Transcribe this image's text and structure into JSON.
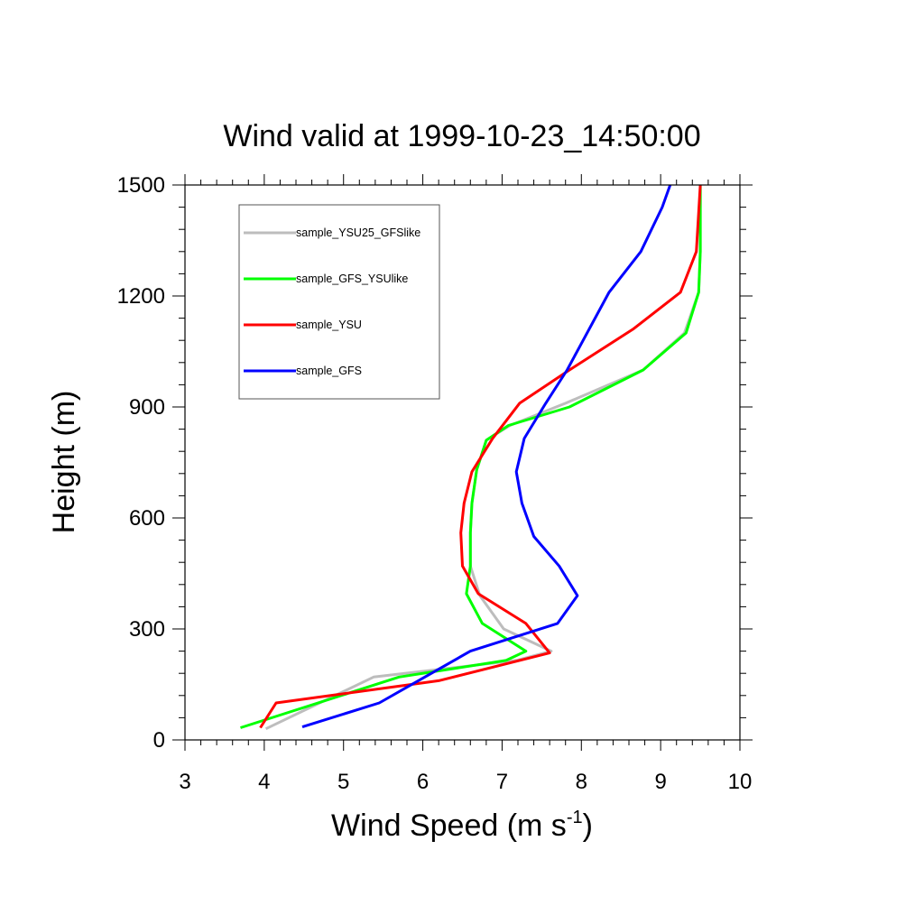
{
  "chart_data": {
    "type": "line",
    "title": "Wind valid at 1999-10-23_14:50:00",
    "xlabel": "Wind Speed (m s",
    "xlabel_sup": "-1",
    "xlabel_end": ")",
    "ylabel": "Height (m)",
    "xlim": [
      3,
      10
    ],
    "ylim": [
      0,
      1500
    ],
    "xticks": [
      3,
      4,
      5,
      6,
      7,
      8,
      9,
      10
    ],
    "yticks": [
      0,
      300,
      600,
      900,
      1200,
      1500
    ],
    "legend_position": "top-left",
    "grid": false,
    "series": [
      {
        "name": "sample_YSU25_GFSlike",
        "color": "#bdbdbd",
        "x": [
          4.02,
          5.38,
          7.18,
          7.62,
          7.02,
          6.72,
          6.6,
          6.6,
          6.62,
          6.68,
          6.8,
          7.1,
          7.8,
          8.78,
          9.3,
          9.48,
          9.5,
          9.5
        ],
        "y": [
          30,
          170,
          215,
          240,
          300,
          390,
          470,
          560,
          640,
          730,
          810,
          850,
          910,
          1000,
          1100,
          1210,
          1320,
          1500
        ]
      },
      {
        "name": "sample_GFS_YSUlike",
        "color": "#00ff00",
        "x": [
          3.7,
          5.7,
          7.05,
          7.3,
          6.75,
          6.55,
          6.6,
          6.6,
          6.62,
          6.68,
          6.8,
          7.08,
          7.85,
          8.78,
          9.32,
          9.48,
          9.5,
          9.5
        ],
        "y": [
          33,
          170,
          215,
          240,
          315,
          395,
          470,
          560,
          640,
          730,
          810,
          850,
          900,
          1000,
          1100,
          1210,
          1320,
          1500
        ]
      },
      {
        "name": "sample_YSU",
        "color": "#ff0000",
        "x": [
          3.95,
          4.15,
          6.2,
          7.6,
          7.3,
          6.7,
          6.5,
          6.48,
          6.52,
          6.62,
          6.88,
          7.22,
          7.85,
          8.65,
          9.25,
          9.45,
          9.5
        ],
        "y": [
          33,
          100,
          160,
          235,
          315,
          395,
          470,
          560,
          640,
          725,
          815,
          910,
          1000,
          1110,
          1210,
          1320,
          1500
        ]
      },
      {
        "name": "sample_GFS",
        "color": "#0000ff",
        "x": [
          4.48,
          5.45,
          6.6,
          7.7,
          7.95,
          7.72,
          7.4,
          7.25,
          7.18,
          7.28,
          7.55,
          7.82,
          8.35,
          8.75,
          9.02,
          9.12
        ],
        "y": [
          35,
          100,
          240,
          315,
          390,
          470,
          550,
          640,
          725,
          815,
          910,
          1000,
          1210,
          1320,
          1440,
          1500
        ]
      }
    ]
  }
}
